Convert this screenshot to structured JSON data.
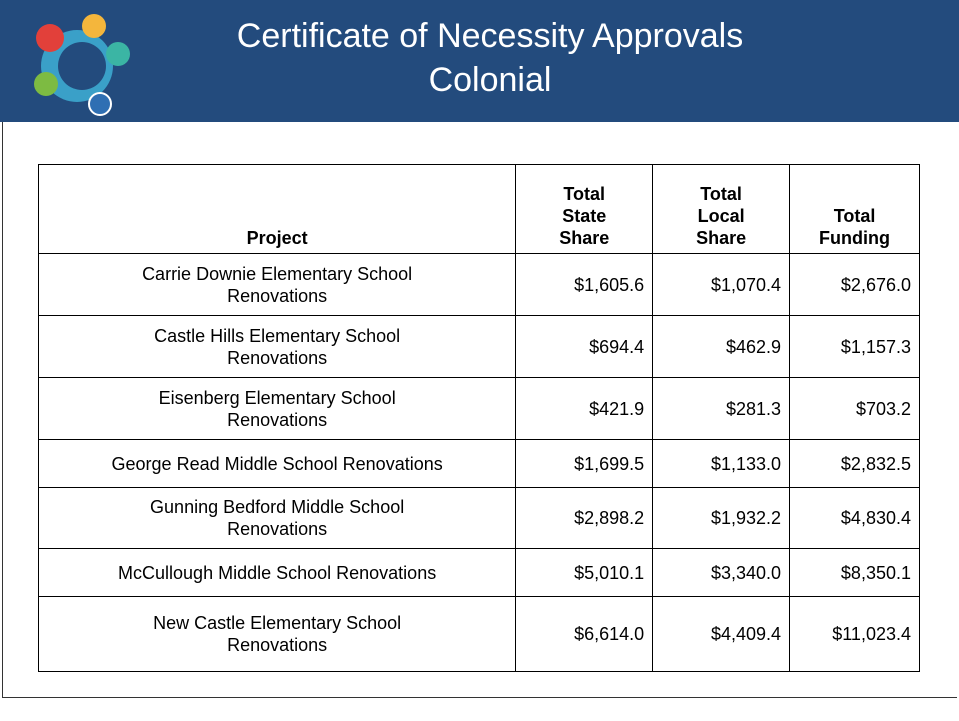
{
  "header": {
    "title": "Certificate of Necessity Approvals",
    "subtitle": "Colonial"
  },
  "table": {
    "columns": [
      [
        "Project"
      ],
      [
        "Total",
        "State",
        "Share"
      ],
      [
        "Total",
        "Local",
        "Share"
      ],
      [
        "Total",
        "Funding"
      ]
    ],
    "rows": [
      [
        [
          "Carrie Downie Elementary School",
          "Renovations"
        ],
        "$1,605.6",
        "$1,070.4",
        "$2,676.0"
      ],
      [
        [
          "Castle Hills Elementary School",
          "Renovations"
        ],
        "$694.4",
        "$462.9",
        "$1,157.3"
      ],
      [
        [
          "Eisenberg Elementary School",
          "Renovations"
        ],
        "$421.9",
        "$281.3",
        "$703.2"
      ],
      [
        [
          "George Read Middle School Renovations"
        ],
        "$1,699.5",
        "$1,133.0",
        "$2,832.5"
      ],
      [
        [
          "Gunning Bedford Middle School",
          "Renovations"
        ],
        "$2,898.2",
        "$1,932.2",
        "$4,830.4"
      ],
      [
        [
          "McCullough Middle School Renovations"
        ],
        "$5,010.1",
        "$3,340.0",
        "$8,350.1"
      ],
      [
        [
          "New Castle Elementary School",
          "Renovations"
        ],
        "$6,614.0",
        "$4,409.4",
        "$11,023.4"
      ]
    ]
  }
}
